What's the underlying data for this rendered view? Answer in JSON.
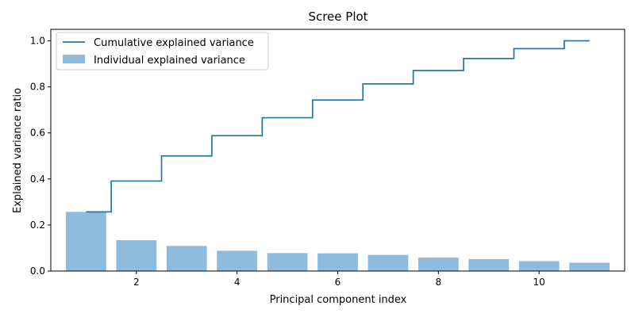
{
  "chart_data": {
    "type": "bar",
    "title": "Scree Plot",
    "xlabel": "Principal component index",
    "ylabel": "Explained variance ratio",
    "x": [
      1,
      2,
      3,
      4,
      5,
      6,
      7,
      8,
      9,
      10,
      11
    ],
    "xlim": [
      0.3,
      11.7
    ],
    "ylim": [
      0,
      1.05
    ],
    "xticks": [
      2,
      4,
      6,
      8,
      10
    ],
    "yticks": [
      0.0,
      0.2,
      0.4,
      0.6,
      0.8,
      1.0
    ],
    "series": [
      {
        "name": "Individual explained variance",
        "type": "bar",
        "color": "#8fbcdc",
        "values": [
          0.257,
          0.134,
          0.109,
          0.088,
          0.078,
          0.077,
          0.07,
          0.058,
          0.052,
          0.043,
          0.036
        ]
      },
      {
        "name": "Cumulative explained variance",
        "type": "step",
        "color": "#1f77b4",
        "values": [
          0.257,
          0.391,
          0.5,
          0.588,
          0.666,
          0.743,
          0.813,
          0.871,
          0.923,
          0.966,
          1.0
        ]
      }
    ],
    "legend": {
      "position": "top-left"
    },
    "grid": false
  }
}
